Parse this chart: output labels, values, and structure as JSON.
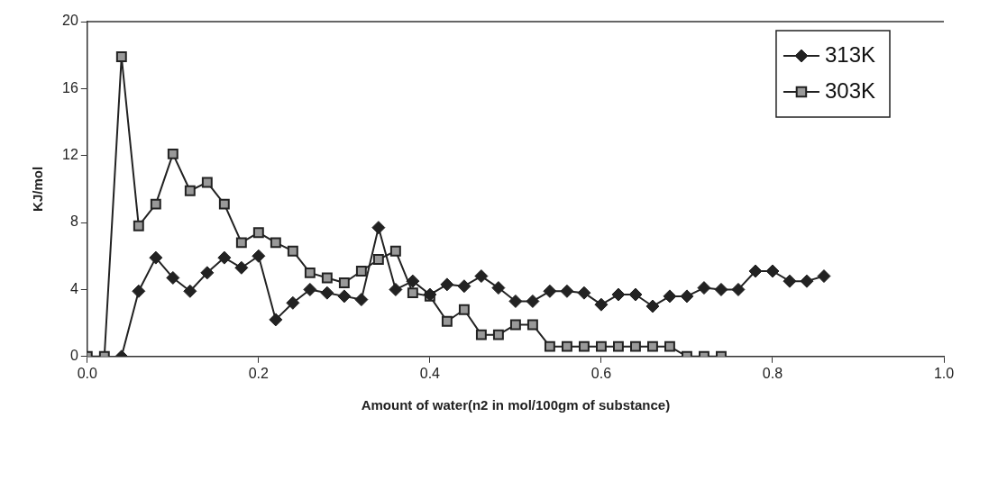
{
  "chart_data": {
    "type": "line",
    "xlabel": "Amount of water(n2 in mol/100gm of substance)",
    "ylabel": "KJ/mol",
    "series": [
      {
        "name": "313K",
        "color": "#222222",
        "marker": "diamond",
        "x": [
          0.04,
          0.06,
          0.08,
          0.1,
          0.12,
          0.14,
          0.16,
          0.18,
          0.2,
          0.22,
          0.24,
          0.26,
          0.28,
          0.3,
          0.32,
          0.34,
          0.36,
          0.38,
          0.4,
          0.42,
          0.44,
          0.46,
          0.48,
          0.5,
          0.52,
          0.54,
          0.56,
          0.58,
          0.6,
          0.62,
          0.64,
          0.66,
          0.68,
          0.7,
          0.72,
          0.74,
          0.76,
          0.78,
          0.8,
          0.82,
          0.84,
          0.86
        ],
        "values": [
          0,
          3.9,
          5.9,
          4.7,
          3.9,
          5.0,
          5.9,
          5.3,
          6.0,
          2.2,
          3.2,
          4.0,
          3.8,
          3.6,
          3.4,
          7.7,
          4.0,
          4.5,
          3.7,
          4.3,
          4.2,
          4.8,
          4.1,
          3.3,
          3.3,
          3.9,
          3.9,
          3.8,
          3.1,
          3.7,
          3.7,
          3.0,
          3.6,
          3.6,
          4.1,
          4.0,
          4.0,
          5.1,
          5.1,
          4.5,
          4.5,
          4.8
        ]
      },
      {
        "name": "303K",
        "color": "#999999",
        "marker": "square",
        "x": [
          0,
          0.02,
          0.04,
          0.06,
          0.08,
          0.1,
          0.12,
          0.14,
          0.16,
          0.18,
          0.2,
          0.22,
          0.24,
          0.26,
          0.28,
          0.3,
          0.32,
          0.34,
          0.36,
          0.38,
          0.4,
          0.42,
          0.44,
          0.46,
          0.48,
          0.5,
          0.52,
          0.54,
          0.56,
          0.58,
          0.6,
          0.62,
          0.64,
          0.66,
          0.68,
          0.7,
          0.72,
          0.74
        ],
        "values": [
          0,
          0,
          17.9,
          7.8,
          9.1,
          12.1,
          9.9,
          10.4,
          9.1,
          6.8,
          7.4,
          6.8,
          6.3,
          5.0,
          4.7,
          4.4,
          5.1,
          5.8,
          6.3,
          3.8,
          3.6,
          2.1,
          2.8,
          1.3,
          1.3,
          1.9,
          1.9,
          0.6,
          0.6,
          0.6,
          0.6,
          0.6,
          0.6,
          0.6,
          0.6,
          0,
          0,
          0
        ]
      }
    ],
    "xlim": [
      0,
      1
    ],
    "xticks": [
      {
        "value": 0,
        "label": "0.0"
      },
      {
        "value": 0.2,
        "label": "0.2"
      },
      {
        "value": 0.4,
        "label": "0.4"
      },
      {
        "value": 0.6,
        "label": "0.6"
      },
      {
        "value": 0.8,
        "label": "0.8"
      },
      {
        "value": 1,
        "label": "1.0"
      }
    ],
    "ylim": [
      0,
      20
    ],
    "yticks": [
      0,
      4,
      8,
      12,
      16,
      20
    ],
    "grid": false,
    "legend": "top right"
  }
}
